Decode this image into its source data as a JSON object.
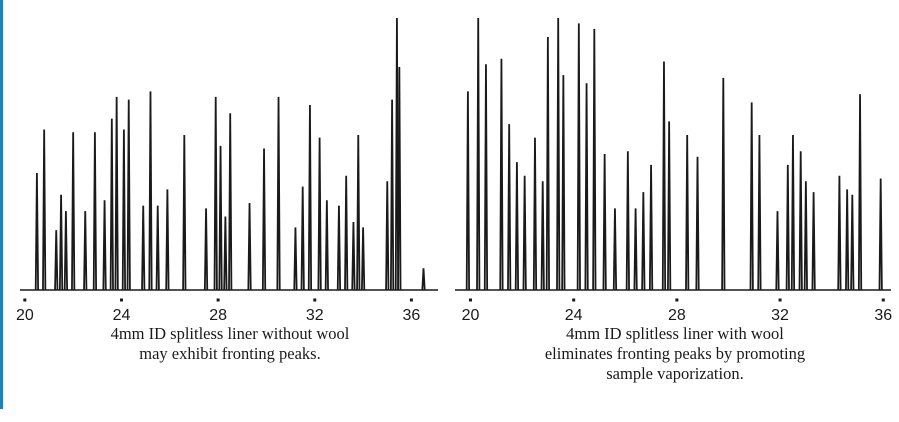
{
  "colors": {
    "accent": "#1f7fc0",
    "trace": "#1a1a1a",
    "background": "#ffffff"
  },
  "chart_data": [
    {
      "type": "line",
      "title": "",
      "xlabel": "",
      "ylabel": "",
      "xlim": [
        19.8,
        37.1
      ],
      "ylim": [
        0,
        1
      ],
      "xticks": [
        20,
        24,
        28,
        32,
        36
      ],
      "grid": false,
      "caption": [
        "4mm ID splitless liner without wool",
        "may exhibit fronting peaks."
      ],
      "peaks": [
        {
          "x": 20.5,
          "y": 0.43
        },
        {
          "x": 20.8,
          "y": 0.59
        },
        {
          "x": 21.3,
          "y": 0.22
        },
        {
          "x": 21.5,
          "y": 0.35
        },
        {
          "x": 21.7,
          "y": 0.29
        },
        {
          "x": 22.0,
          "y": 0.58
        },
        {
          "x": 22.5,
          "y": 0.29
        },
        {
          "x": 22.9,
          "y": 0.58
        },
        {
          "x": 23.3,
          "y": 0.33
        },
        {
          "x": 23.6,
          "y": 0.63
        },
        {
          "x": 23.8,
          "y": 0.71
        },
        {
          "x": 24.1,
          "y": 0.59
        },
        {
          "x": 24.3,
          "y": 0.7
        },
        {
          "x": 24.9,
          "y": 0.31
        },
        {
          "x": 25.2,
          "y": 0.73
        },
        {
          "x": 25.5,
          "y": 0.31
        },
        {
          "x": 25.9,
          "y": 0.37
        },
        {
          "x": 26.6,
          "y": 0.57
        },
        {
          "x": 27.5,
          "y": 0.3
        },
        {
          "x": 27.9,
          "y": 0.71
        },
        {
          "x": 28.1,
          "y": 0.53
        },
        {
          "x": 28.3,
          "y": 0.27
        },
        {
          "x": 28.5,
          "y": 0.65
        },
        {
          "x": 29.3,
          "y": 0.32
        },
        {
          "x": 29.9,
          "y": 0.52
        },
        {
          "x": 30.5,
          "y": 0.71
        },
        {
          "x": 31.2,
          "y": 0.23
        },
        {
          "x": 31.5,
          "y": 0.38
        },
        {
          "x": 31.8,
          "y": 0.68
        },
        {
          "x": 32.2,
          "y": 0.56
        },
        {
          "x": 32.5,
          "y": 0.33
        },
        {
          "x": 33.0,
          "y": 0.31
        },
        {
          "x": 33.3,
          "y": 0.42
        },
        {
          "x": 33.6,
          "y": 0.25
        },
        {
          "x": 33.8,
          "y": 0.57
        },
        {
          "x": 34.0,
          "y": 0.23
        },
        {
          "x": 35.0,
          "y": 0.4
        },
        {
          "x": 35.2,
          "y": 0.7
        },
        {
          "x": 35.4,
          "y": 1.0
        },
        {
          "x": 35.5,
          "y": 0.82
        },
        {
          "x": 36.5,
          "y": 0.08
        }
      ]
    },
    {
      "type": "line",
      "title": "",
      "xlabel": "",
      "ylabel": "",
      "xlim": [
        19.4,
        36.3
      ],
      "ylim": [
        0,
        1
      ],
      "xticks": [
        20,
        24,
        28,
        32,
        36
      ],
      "grid": false,
      "caption": [
        "4mm ID splitless liner with wool",
        "eliminates fronting peaks by promoting",
        "sample vaporization."
      ],
      "peaks": [
        {
          "x": 19.9,
          "y": 0.73
        },
        {
          "x": 20.3,
          "y": 1.0
        },
        {
          "x": 20.6,
          "y": 0.83
        },
        {
          "x": 21.2,
          "y": 0.85
        },
        {
          "x": 21.5,
          "y": 0.61
        },
        {
          "x": 21.8,
          "y": 0.47
        },
        {
          "x": 22.1,
          "y": 0.42
        },
        {
          "x": 22.5,
          "y": 0.56
        },
        {
          "x": 22.8,
          "y": 0.4
        },
        {
          "x": 23.0,
          "y": 0.93
        },
        {
          "x": 23.4,
          "y": 1.0
        },
        {
          "x": 23.6,
          "y": 0.79
        },
        {
          "x": 24.2,
          "y": 0.98
        },
        {
          "x": 24.5,
          "y": 0.76
        },
        {
          "x": 24.8,
          "y": 0.96
        },
        {
          "x": 25.2,
          "y": 0.5
        },
        {
          "x": 25.6,
          "y": 0.3
        },
        {
          "x": 26.1,
          "y": 0.51
        },
        {
          "x": 26.4,
          "y": 0.3
        },
        {
          "x": 26.7,
          "y": 0.36
        },
        {
          "x": 27.0,
          "y": 0.46
        },
        {
          "x": 27.5,
          "y": 0.84
        },
        {
          "x": 27.7,
          "y": 0.62
        },
        {
          "x": 28.4,
          "y": 0.57
        },
        {
          "x": 28.8,
          "y": 0.49
        },
        {
          "x": 29.8,
          "y": 0.78
        },
        {
          "x": 30.9,
          "y": 0.69
        },
        {
          "x": 31.2,
          "y": 0.57
        },
        {
          "x": 31.9,
          "y": 0.29
        },
        {
          "x": 32.3,
          "y": 0.46
        },
        {
          "x": 32.5,
          "y": 0.57
        },
        {
          "x": 32.8,
          "y": 0.51
        },
        {
          "x": 33.0,
          "y": 0.4
        },
        {
          "x": 33.3,
          "y": 0.36
        },
        {
          "x": 34.3,
          "y": 0.42
        },
        {
          "x": 34.6,
          "y": 0.37
        },
        {
          "x": 34.8,
          "y": 0.35
        },
        {
          "x": 35.1,
          "y": 0.72
        },
        {
          "x": 35.9,
          "y": 0.41
        }
      ]
    }
  ]
}
